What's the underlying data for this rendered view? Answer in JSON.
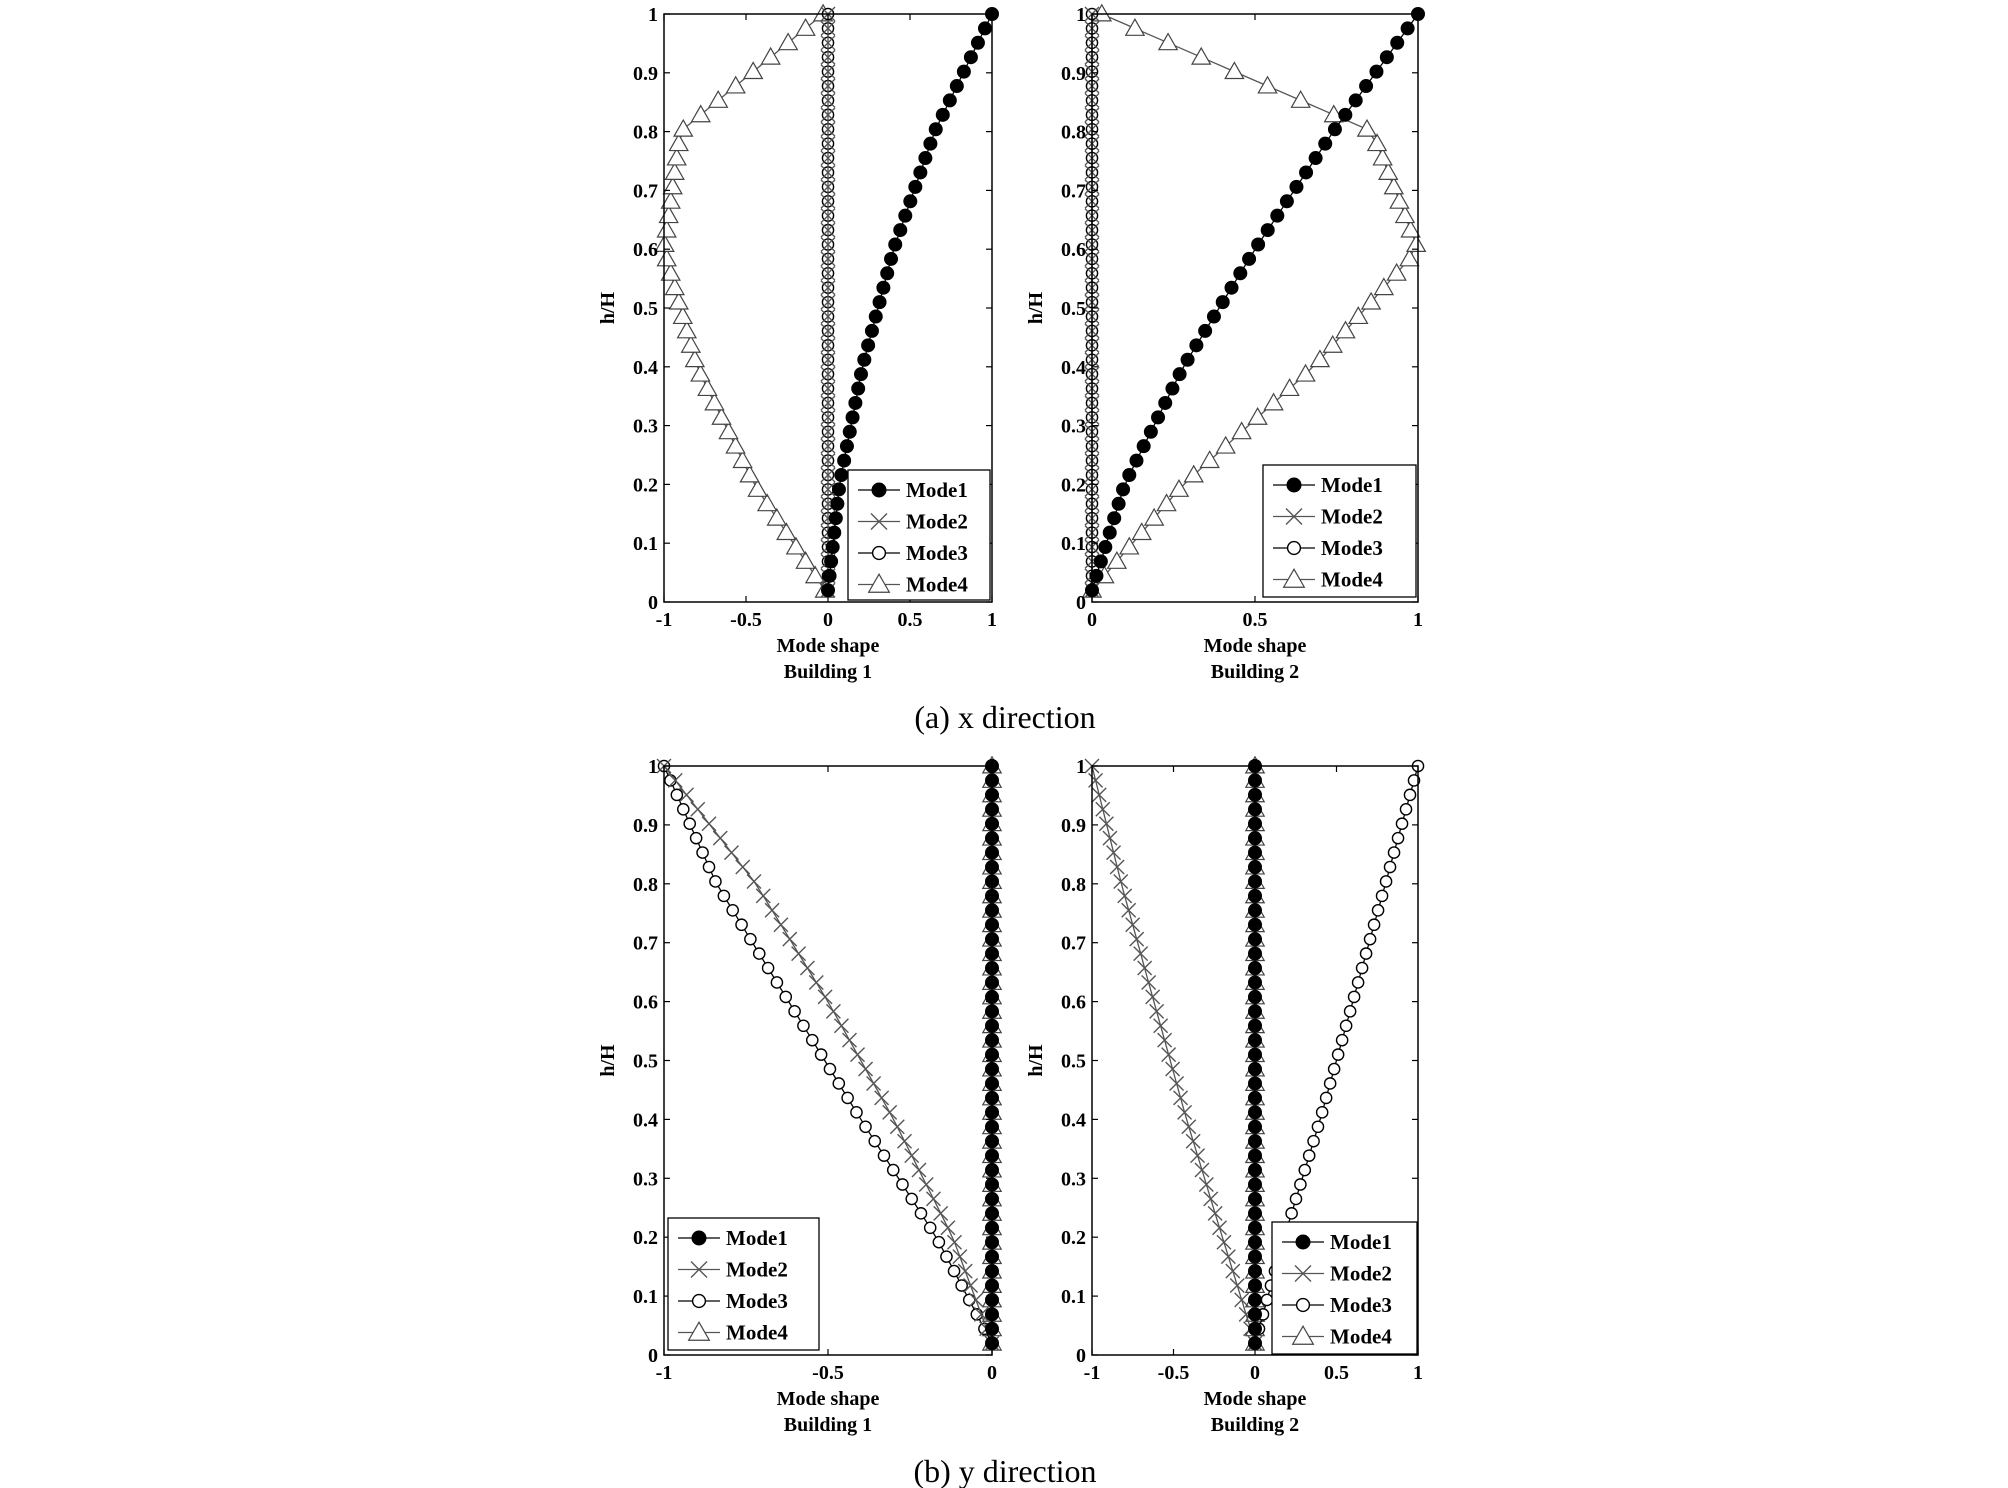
{
  "captions": {
    "a": "(a) x direction",
    "b": "(b) y direction"
  },
  "chart_data": [
    {
      "type": "line",
      "panel": "(a) x direction",
      "xlabel": "Mode shape",
      "subtitle": "Building 1",
      "ylabel": "h/H",
      "xlim": [
        -1,
        1
      ],
      "ylim": [
        0,
        1
      ],
      "xticks": [
        -1,
        -0.5,
        0,
        0.5,
        1
      ],
      "yticks": [
        0,
        0.1,
        0.2,
        0.3,
        0.4,
        0.5,
        0.6,
        0.7,
        0.8,
        0.9,
        1
      ],
      "grid": false,
      "legend": "bottom-right",
      "y": [
        0.02,
        0.2,
        0.4,
        0.6,
        0.8,
        1.0
      ],
      "series": [
        {
          "name": "Mode1",
          "marker": "filled-circle",
          "x": [
            0.0,
            0.07,
            0.21,
            0.4,
            0.65,
            1.0
          ]
        },
        {
          "name": "Mode2",
          "marker": "cross",
          "x": [
            0.0,
            0.0,
            0.0,
            0.0,
            0.0,
            0.0
          ]
        },
        {
          "name": "Mode3",
          "marker": "circle",
          "x": [
            0.0,
            0.0,
            0.0,
            0.0,
            0.0,
            0.0
          ]
        },
        {
          "name": "Mode4",
          "marker": "triangle",
          "x": [
            -0.02,
            -0.45,
            -0.8,
            -1.0,
            -0.9,
            -0.03
          ]
        }
      ]
    },
    {
      "type": "line",
      "panel": "(a) x direction",
      "xlabel": "Mode shape",
      "subtitle": "Building 2",
      "ylabel": "h/H",
      "xlim": [
        0,
        1
      ],
      "ylim": [
        0,
        1
      ],
      "xticks": [
        0,
        0.5,
        1
      ],
      "yticks": [
        0,
        0.1,
        0.2,
        0.3,
        0.4,
        0.5,
        0.6,
        0.7,
        0.8,
        0.9,
        1
      ],
      "grid": false,
      "legend": "bottom-right",
      "y": [
        0.02,
        0.2,
        0.4,
        0.6,
        0.8,
        1.0
      ],
      "series": [
        {
          "name": "Mode1",
          "marker": "filled-circle",
          "x": [
            0.0,
            0.1,
            0.28,
            0.5,
            0.74,
            1.0
          ]
        },
        {
          "name": "Mode2",
          "marker": "cross",
          "x": [
            0.0,
            0.0,
            0.0,
            0.0,
            0.0,
            0.0
          ]
        },
        {
          "name": "Mode3",
          "marker": "circle",
          "x": [
            0.0,
            0.0,
            0.0,
            0.0,
            0.0,
            0.0
          ]
        },
        {
          "name": "Mode4",
          "marker": "triangle",
          "x": [
            0.0,
            0.28,
            0.68,
            1.0,
            0.86,
            0.03
          ]
        }
      ]
    },
    {
      "type": "line",
      "panel": "(b) y direction",
      "xlabel": "Mode shape",
      "subtitle": "Building 1",
      "ylabel": "h/H",
      "xlim": [
        -1,
        0
      ],
      "ylim": [
        0,
        1
      ],
      "xticks": [
        -1,
        -0.5,
        0
      ],
      "yticks": [
        0,
        0.1,
        0.2,
        0.3,
        0.4,
        0.5,
        0.6,
        0.7,
        0.8,
        0.9,
        1
      ],
      "grid": false,
      "legend": "bottom-left",
      "y": [
        0.02,
        0.2,
        0.4,
        0.6,
        0.8,
        1.0
      ],
      "series": [
        {
          "name": "Mode1",
          "marker": "filled-circle",
          "x": [
            0.0,
            0.0,
            0.0,
            0.0,
            0.0,
            0.0
          ]
        },
        {
          "name": "Mode2",
          "marker": "cross",
          "x": [
            0.0,
            -0.12,
            -0.3,
            -0.5,
            -0.72,
            -1.0
          ]
        },
        {
          "name": "Mode3",
          "marker": "circle",
          "x": [
            0.0,
            -0.17,
            -0.4,
            -0.62,
            -0.84,
            -1.0
          ]
        },
        {
          "name": "Mode4",
          "marker": "triangle",
          "x": [
            0.0,
            0.0,
            0.0,
            0.0,
            0.0,
            0.0
          ]
        }
      ]
    },
    {
      "type": "line",
      "panel": "(b) y direction",
      "xlabel": "Mode shape",
      "subtitle": "Building 2",
      "ylabel": "h/H",
      "xlim": [
        -1,
        1
      ],
      "ylim": [
        0,
        1
      ],
      "xticks": [
        -1,
        -0.5,
        0,
        0.5,
        1
      ],
      "yticks": [
        0,
        0.1,
        0.2,
        0.3,
        0.4,
        0.5,
        0.6,
        0.7,
        0.8,
        0.9,
        1
      ],
      "grid": false,
      "legend": "bottom-right",
      "y": [
        0.02,
        0.2,
        0.4,
        0.6,
        0.8,
        1.0
      ],
      "series": [
        {
          "name": "Mode1",
          "marker": "filled-circle",
          "x": [
            0.0,
            0.0,
            0.0,
            0.0,
            0.0,
            0.0
          ]
        },
        {
          "name": "Mode2",
          "marker": "cross",
          "x": [
            0.0,
            -0.2,
            -0.42,
            -0.62,
            -0.82,
            -1.0
          ]
        },
        {
          "name": "Mode3",
          "marker": "circle",
          "x": [
            0.0,
            0.18,
            0.4,
            0.6,
            0.8,
            1.0
          ]
        },
        {
          "name": "Mode4",
          "marker": "triangle",
          "x": [
            0.0,
            0.0,
            0.0,
            0.0,
            0.0,
            0.0
          ]
        }
      ]
    }
  ]
}
